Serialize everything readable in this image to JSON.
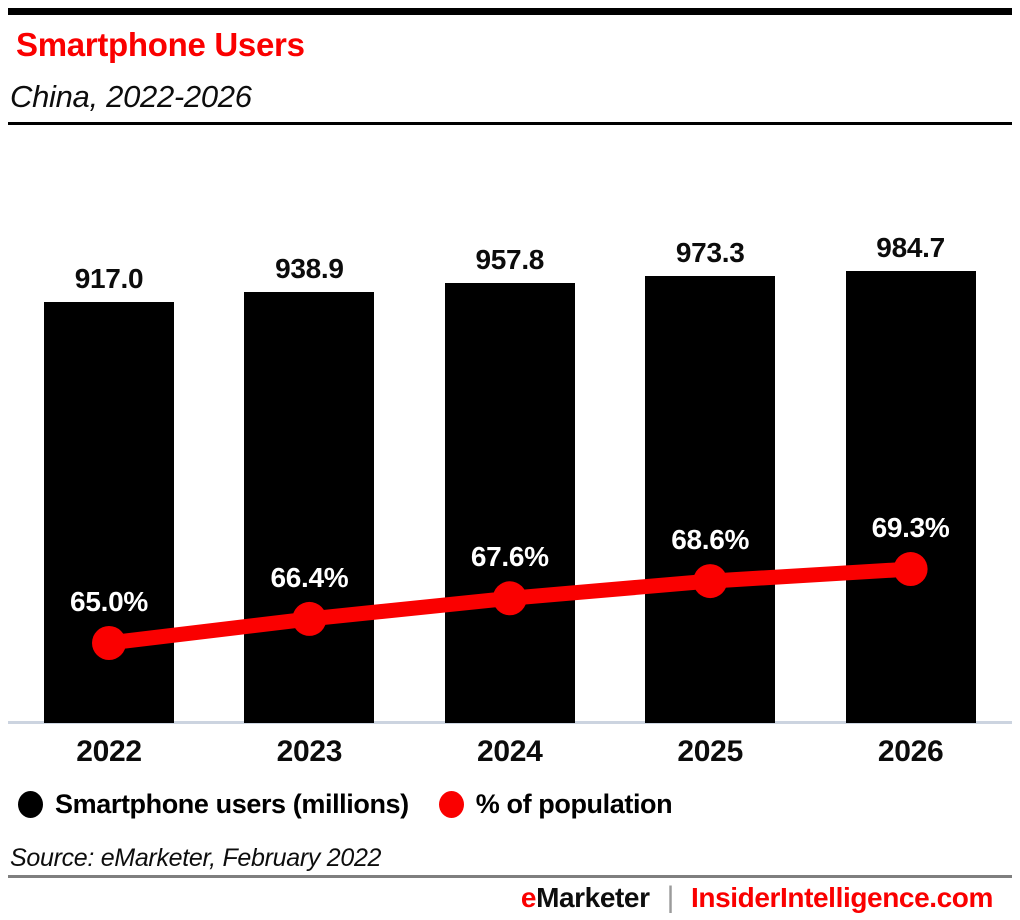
{
  "header": {
    "title": "Smartphone Users",
    "subtitle": "China, 2022-2026"
  },
  "chart_data": {
    "type": "bar",
    "title": "Smartphone Users",
    "subtitle": "China, 2022-2026",
    "categories": [
      "2022",
      "2023",
      "2024",
      "2025",
      "2026"
    ],
    "series": [
      {
        "name": "Smartphone users (millions)",
        "type": "bar",
        "color": "#000000",
        "values": [
          917.0,
          938.9,
          957.8,
          973.3,
          984.7
        ],
        "value_labels": [
          "917.0",
          "938.9",
          "957.8",
          "973.3",
          "984.7"
        ],
        "axis_min": 0
      },
      {
        "name": "% of population",
        "type": "line",
        "color": "#fa0000",
        "values": [
          65.0,
          66.4,
          67.6,
          68.6,
          69.3
        ],
        "value_labels": [
          "65.0%",
          "66.4%",
          "67.6%",
          "68.6%",
          "69.3%"
        ]
      }
    ],
    "grid": false,
    "legend_position": "bottom",
    "value_labels_shown": true,
    "axis_ticks_shown": false
  },
  "legend": {
    "items": [
      {
        "label": "Smartphone users (millions)",
        "color": "#000000"
      },
      {
        "label": "% of population",
        "color": "#fa0000"
      }
    ]
  },
  "source": "Source: eMarketer, February 2022",
  "footer": {
    "brand_prefix": "e",
    "brand_rest": "Marketer",
    "separator": "|",
    "site": "InsiderIntelligence.com"
  },
  "colors": {
    "accent_red": "#fa0000",
    "bar_black": "#000000",
    "axis_line": "#ccd4e0",
    "footer_divider_gray": "#7f7f7f",
    "percent_label_text": "#ffffff"
  }
}
